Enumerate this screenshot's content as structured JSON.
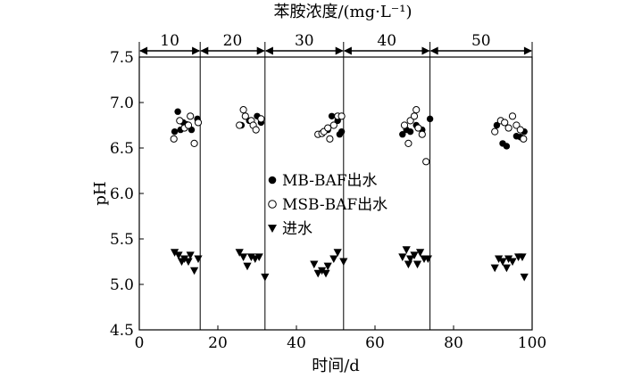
{
  "chart_data": {
    "type": "scatter",
    "xlabel": "时间/d",
    "ylabel": "pH",
    "top_axis_title": "苯胺浓度/(mg·L⁻¹)",
    "xlim": [
      0,
      100
    ],
    "ylim": [
      4.5,
      7.5
    ],
    "x_ticks": [
      "0",
      "20",
      "40",
      "60",
      "80",
      "100"
    ],
    "y_ticks": [
      "4.5",
      "5.0",
      "5.5",
      "6.0",
      "6.5",
      "7.0",
      "7.5"
    ],
    "grid": false,
    "legend_position": "center",
    "phase_boundaries": [
      15.5,
      32,
      52,
      74
    ],
    "phases": [
      {
        "label": "10",
        "x_start": 0,
        "x_end": 15.5
      },
      {
        "label": "20",
        "x_start": 15.5,
        "x_end": 32
      },
      {
        "label": "30",
        "x_start": 32,
        "x_end": 52
      },
      {
        "label": "40",
        "x_start": 52,
        "x_end": 74
      },
      {
        "label": "50",
        "x_start": 74,
        "x_end": 100
      }
    ],
    "series": [
      {
        "name": "MB-BAF出水",
        "marker": "filled-circle",
        "points": [
          [
            9,
            6.68
          ],
          [
            9.8,
            6.9
          ],
          [
            10.5,
            6.7
          ],
          [
            11.2,
            6.78
          ],
          [
            12,
            6.76
          ],
          [
            13.3,
            6.7
          ],
          [
            14.8,
            6.82
          ],
          [
            26,
            6.75
          ],
          [
            28,
            6.8
          ],
          [
            30,
            6.85
          ],
          [
            31,
            6.78
          ],
          [
            48,
            6.7
          ],
          [
            49,
            6.85
          ],
          [
            50.5,
            6.8
          ],
          [
            51,
            6.65
          ],
          [
            51.5,
            6.68
          ],
          [
            67,
            6.65
          ],
          [
            68,
            6.7
          ],
          [
            69,
            6.68
          ],
          [
            70.5,
            6.75
          ],
          [
            72,
            6.7
          ],
          [
            74,
            6.82
          ],
          [
            91,
            6.75
          ],
          [
            92.5,
            6.55
          ],
          [
            93.5,
            6.52
          ],
          [
            96,
            6.63
          ],
          [
            97,
            6.62
          ],
          [
            98,
            6.68
          ]
        ]
      },
      {
        "name": "MSB-BAF出水",
        "marker": "open-circle",
        "points": [
          [
            8.8,
            6.6
          ],
          [
            10.3,
            6.8
          ],
          [
            11.5,
            6.72
          ],
          [
            12.5,
            6.75
          ],
          [
            13,
            6.85
          ],
          [
            14,
            6.55
          ],
          [
            15,
            6.78
          ],
          [
            25.5,
            6.75
          ],
          [
            26.5,
            6.92
          ],
          [
            27,
            6.85
          ],
          [
            28.5,
            6.8
          ],
          [
            29,
            6.75
          ],
          [
            29.7,
            6.7
          ],
          [
            31,
            6.82
          ],
          [
            45.5,
            6.65
          ],
          [
            46.5,
            6.66
          ],
          [
            47,
            6.68
          ],
          [
            48,
            6.72
          ],
          [
            48.5,
            6.6
          ],
          [
            49.5,
            6.75
          ],
          [
            50.5,
            6.85
          ],
          [
            51.5,
            6.85
          ],
          [
            67.5,
            6.75
          ],
          [
            68.5,
            6.55
          ],
          [
            69,
            6.8
          ],
          [
            70,
            6.85
          ],
          [
            70.5,
            6.92
          ],
          [
            71,
            6.72
          ],
          [
            72,
            6.65
          ],
          [
            73,
            6.35
          ],
          [
            90.5,
            6.68
          ],
          [
            92,
            6.8
          ],
          [
            93,
            6.78
          ],
          [
            94,
            6.72
          ],
          [
            95,
            6.85
          ],
          [
            96,
            6.75
          ],
          [
            97,
            6.7
          ],
          [
            97.8,
            6.6
          ]
        ]
      },
      {
        "name": "进水",
        "marker": "filled-down-triangle",
        "points": [
          [
            9,
            5.35
          ],
          [
            10,
            5.32
          ],
          [
            10.8,
            5.25
          ],
          [
            11.5,
            5.28
          ],
          [
            12.5,
            5.25
          ],
          [
            13,
            5.32
          ],
          [
            14,
            5.15
          ],
          [
            15,
            5.28
          ],
          [
            25.5,
            5.35
          ],
          [
            26.5,
            5.3
          ],
          [
            27.5,
            5.2
          ],
          [
            28.5,
            5.3
          ],
          [
            29.5,
            5.28
          ],
          [
            30.5,
            5.3
          ],
          [
            32,
            5.08
          ],
          [
            44.5,
            5.22
          ],
          [
            45.5,
            5.12
          ],
          [
            46.5,
            5.15
          ],
          [
            47.5,
            5.12
          ],
          [
            48,
            5.2
          ],
          [
            49.5,
            5.28
          ],
          [
            50.5,
            5.35
          ],
          [
            52,
            5.25
          ],
          [
            67,
            5.3
          ],
          [
            68,
            5.38
          ],
          [
            68.5,
            5.22
          ],
          [
            69,
            5.28
          ],
          [
            70,
            5.32
          ],
          [
            70.8,
            5.22
          ],
          [
            71.5,
            5.35
          ],
          [
            72.5,
            5.28
          ],
          [
            73.5,
            5.28
          ],
          [
            90.5,
            5.18
          ],
          [
            91.5,
            5.28
          ],
          [
            92.5,
            5.25
          ],
          [
            93.5,
            5.18
          ],
          [
            94,
            5.28
          ],
          [
            95,
            5.25
          ],
          [
            96.5,
            5.3
          ],
          [
            97.5,
            5.3
          ],
          [
            98,
            5.08
          ]
        ]
      }
    ]
  }
}
